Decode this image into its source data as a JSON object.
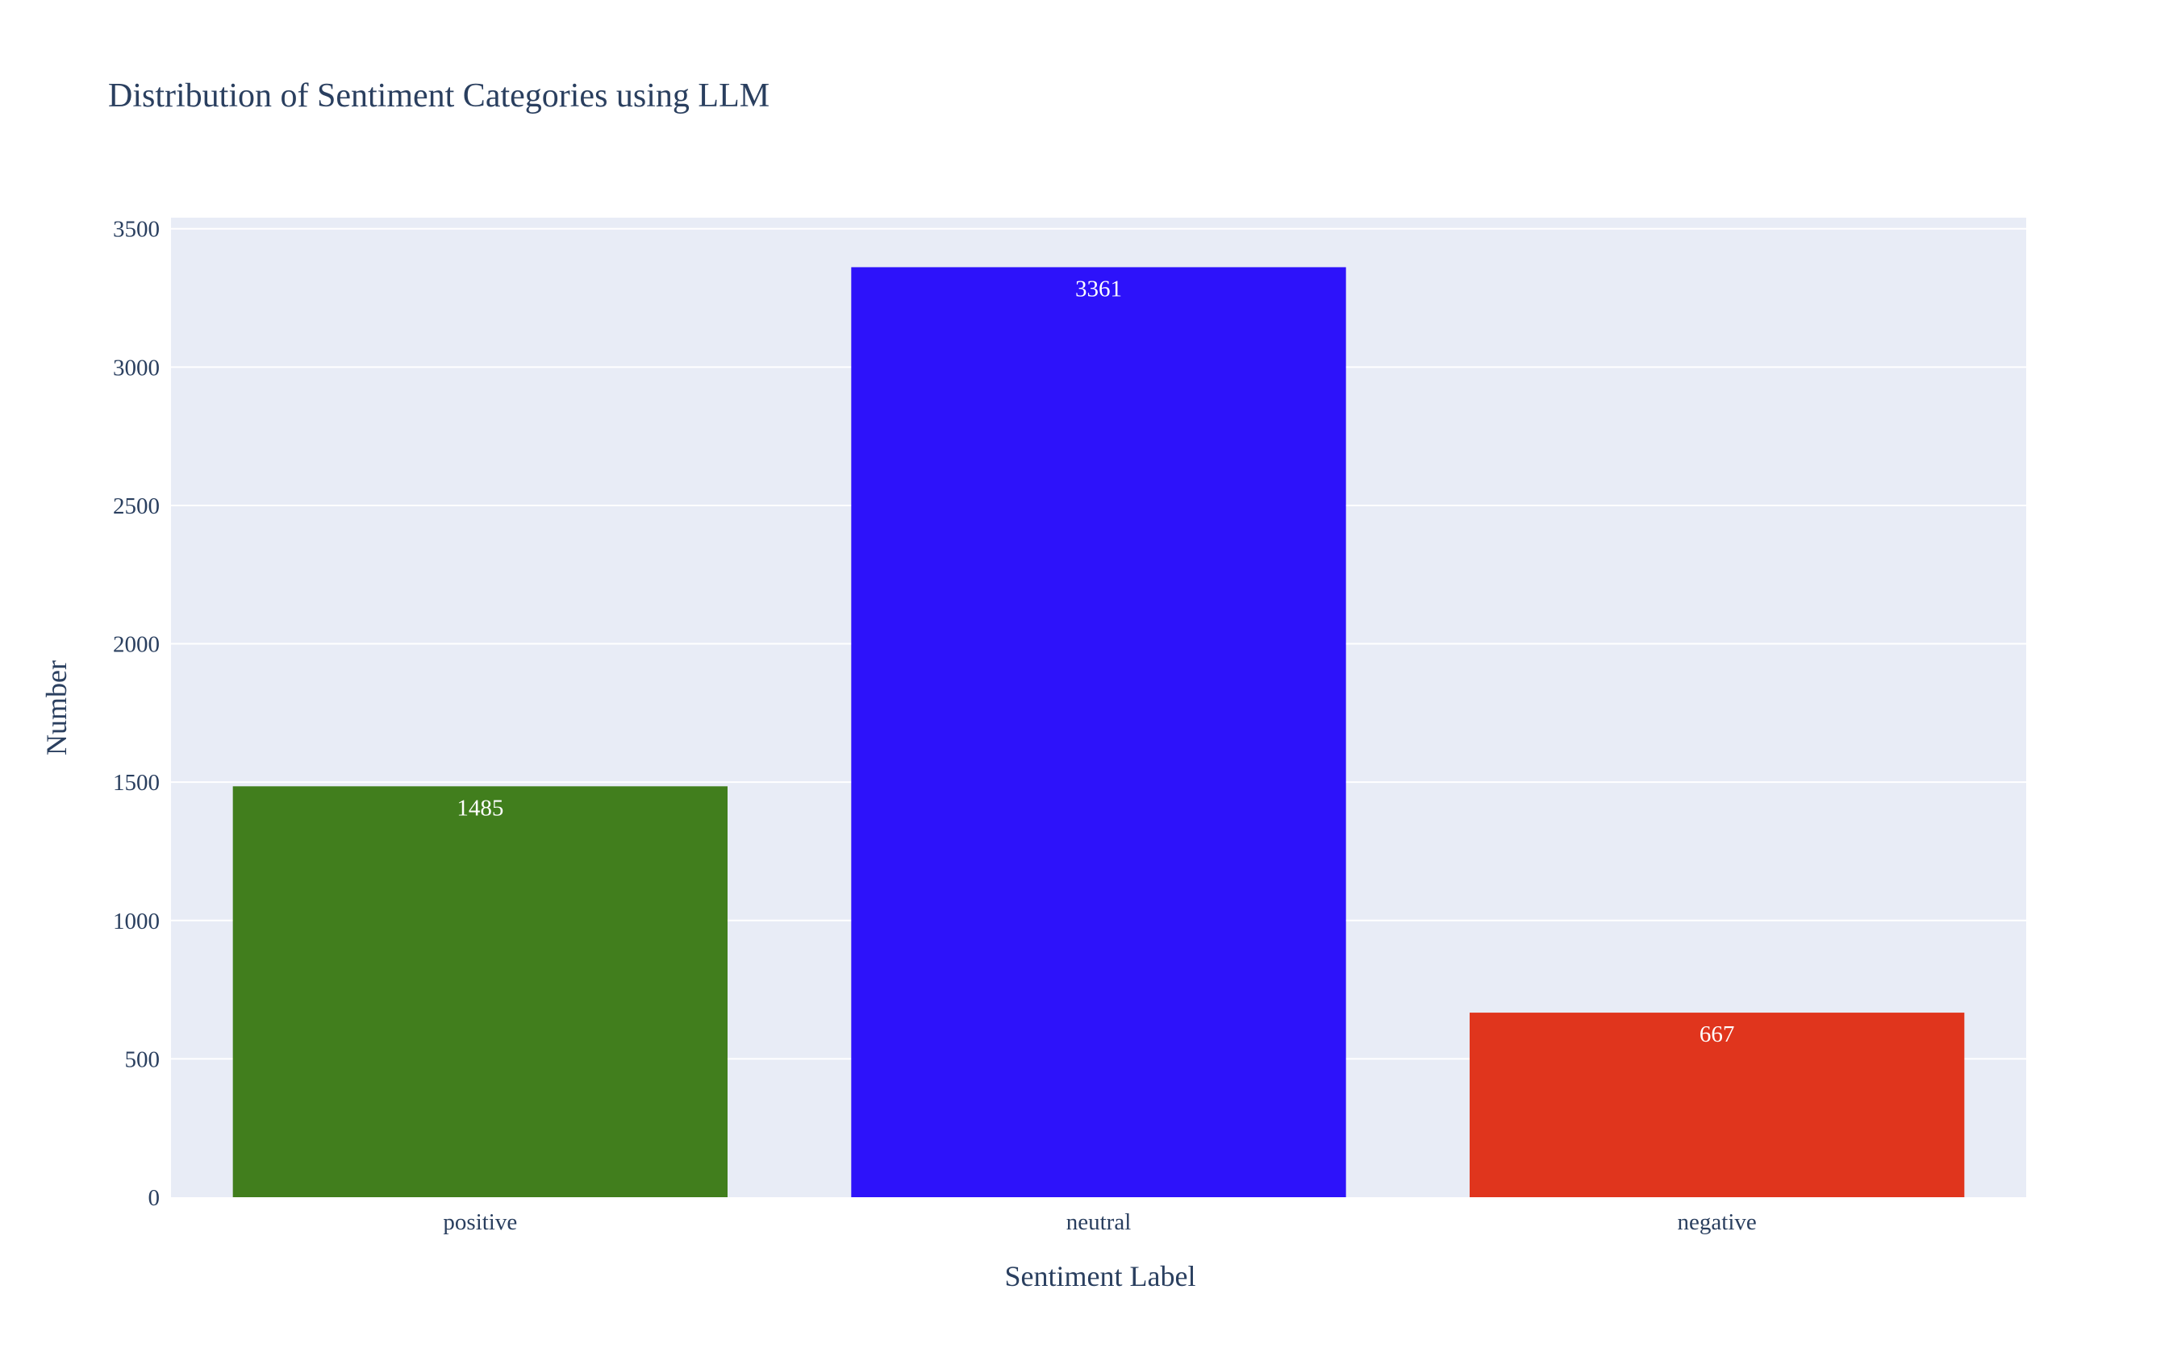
{
  "chart_data": {
    "type": "bar",
    "title": "Distribution of Sentiment Categories using LLM",
    "xlabel": "Sentiment Label",
    "ylabel": "Number",
    "categories": [
      "positive",
      "neutral",
      "negative"
    ],
    "values": [
      1485,
      3361,
      667
    ],
    "value_labels": [
      "1485",
      "3361",
      "667"
    ],
    "colors": [
      "#417e1d",
      "#2d12fa",
      "#e0351d"
    ],
    "ylim": [
      0,
      3540
    ],
    "yticks": [
      0,
      500,
      1000,
      1500,
      2000,
      2500,
      3000,
      3500
    ],
    "ytick_labels": [
      "0",
      "500",
      "1000",
      "1500",
      "2000",
      "2500",
      "3000",
      "3500"
    ],
    "grid": true,
    "legend": "none",
    "plot_background": "#e8ecf6",
    "grid_color": "#ffffff",
    "text_color": "#2a3f5f"
  }
}
